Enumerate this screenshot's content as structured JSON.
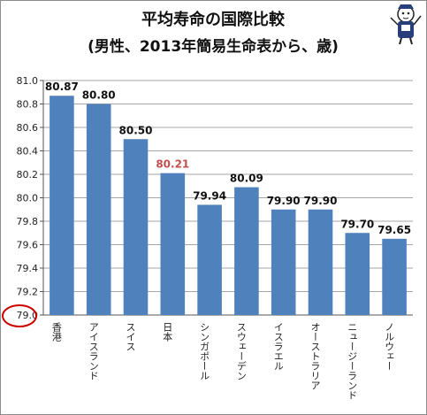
{
  "chart_data": {
    "type": "bar",
    "title_lines": [
      "平均寿命の国際比較",
      "(男性、2013年簡易生命表から、歳)"
    ],
    "categories": [
      "香港",
      "アイスランド",
      "スイス",
      "日本",
      "シンガポール",
      "スウェーデン",
      "イスラエル",
      "オーストラリア",
      "ニュージーランド",
      "ノルウェー"
    ],
    "values": [
      80.87,
      80.8,
      80.5,
      80.21,
      79.94,
      80.09,
      79.9,
      79.9,
      79.7,
      79.65
    ],
    "data_labels": [
      "80.87",
      "80.80",
      "80.50",
      "80.21",
      "79.94",
      "80.09",
      "79.90",
      "79.90",
      "79.70",
      "79.65"
    ],
    "highlight_category": "日本",
    "ylim": [
      79.0,
      81.0
    ],
    "yticks": [
      "79.0",
      "79.2",
      "79.4",
      "79.6",
      "79.8",
      "80.0",
      "80.2",
      "80.4",
      "80.6",
      "80.8",
      "81.0"
    ],
    "grid": true,
    "annotation": "79.0 baseline circled in red",
    "colors": {
      "bar": "#4f81bd",
      "highlight_label": "#c0504d",
      "circle": "#cc0000",
      "grid": "#a6a6a6"
    }
  }
}
